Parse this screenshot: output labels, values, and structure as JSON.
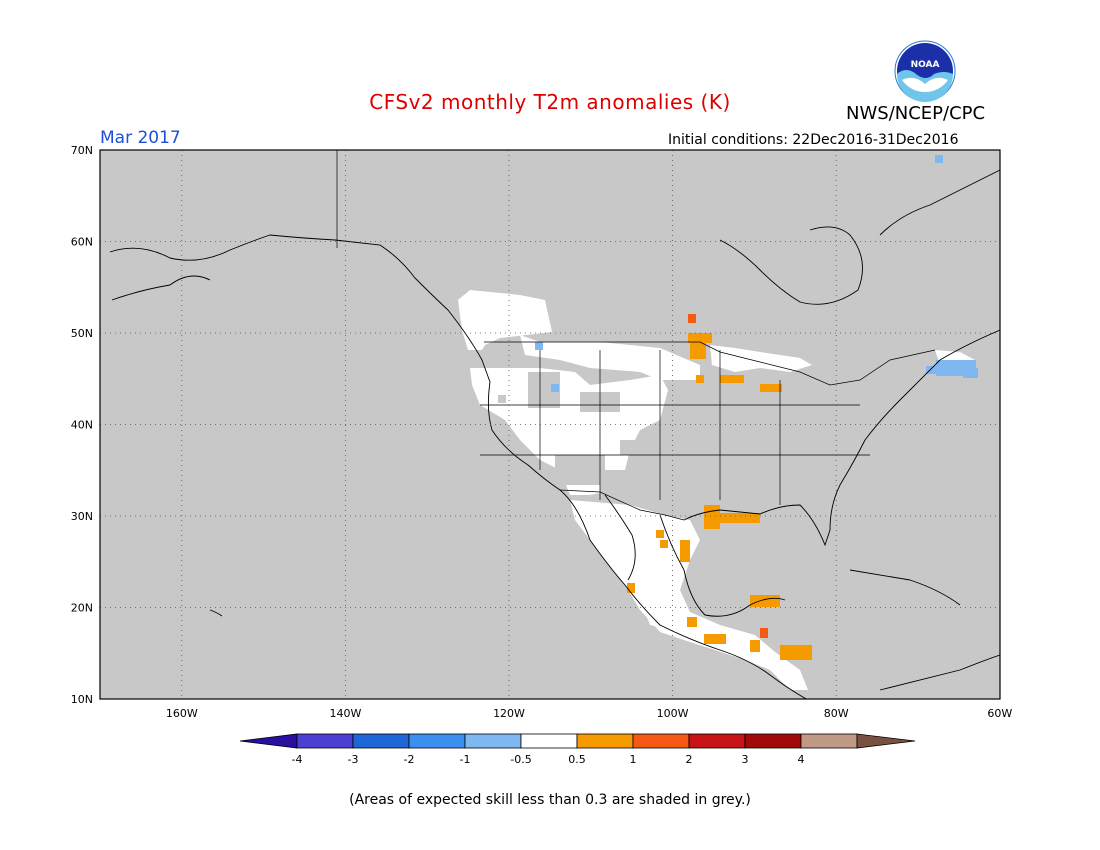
{
  "header": {
    "title": "CFSv2 monthly T2m anomalies (K)",
    "valid_month": "Mar 2017",
    "initial_conditions": "Initial conditions: 22Dec2016-31Dec2016",
    "agency": "NWS/NCEP/CPC",
    "logo_text": "NOAA"
  },
  "map": {
    "lat_labels": [
      "70N",
      "60N",
      "50N",
      "40N",
      "30N",
      "20N",
      "10N"
    ],
    "lon_labels": [
      "160W",
      "140W",
      "120W",
      "100W",
      "80W",
      "60W"
    ],
    "background_color": "#c8c8c8",
    "grid": "dotted"
  },
  "colorbar": {
    "ticks": [
      "-4",
      "-3",
      "-2",
      "-1",
      "-0.5",
      "0.5",
      "1",
      "2",
      "3",
      "4"
    ],
    "colors": [
      "#2a0fa0",
      "#4b3fd4",
      "#1f66d6",
      "#3a8ff0",
      "#7fb8f0",
      "#ffffff",
      "#f59b00",
      "#f55a14",
      "#c81414",
      "#a00a0a",
      "#c09a84",
      "#7a5040"
    ]
  },
  "footnote": "(Areas of expected skill less than 0.3 are shaded in grey.)"
}
